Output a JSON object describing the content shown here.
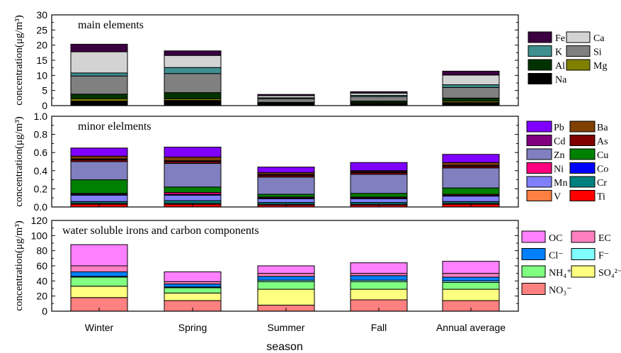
{
  "chart_data": [
    {
      "type": "bar",
      "stacked": true,
      "title": "main elements",
      "ylabel": "concentration(μg/m³)",
      "ylim": [
        0,
        30
      ],
      "yticks": [
        0,
        5,
        10,
        15,
        20,
        25,
        30
      ],
      "categories": [
        "Winter",
        "Spring",
        "Summer",
        "Fall",
        "Annual average"
      ],
      "series": [
        {
          "name": "Na",
          "color": "#000000",
          "values": [
            1.5,
            1.7,
            0.6,
            0.7,
            1.0
          ]
        },
        {
          "name": "Mg",
          "color": "#808000",
          "values": [
            0.8,
            0.6,
            0.2,
            0.3,
            0.5
          ]
        },
        {
          "name": "Al",
          "color": "#003300",
          "values": [
            1.5,
            2.0,
            0.3,
            0.5,
            1.0
          ]
        },
        {
          "name": "Si",
          "color": "#808080",
          "values": [
            6.0,
            6.3,
            1.2,
            1.5,
            3.5
          ]
        },
        {
          "name": "K",
          "color": "#3f8f8f",
          "values": [
            1.0,
            2.0,
            0.3,
            0.4,
            0.9
          ]
        },
        {
          "name": "Ca",
          "color": "#d3d3d3",
          "values": [
            7.0,
            4.0,
            0.7,
            0.7,
            3.2
          ]
        },
        {
          "name": "Fe",
          "color": "#3a0040",
          "values": [
            2.5,
            1.5,
            0.4,
            0.5,
            1.3
          ]
        }
      ],
      "legend_order": [
        "Fe",
        "Ca",
        "K",
        "Si",
        "Al",
        "Mg",
        "Na"
      ]
    },
    {
      "type": "bar",
      "stacked": true,
      "title": "minor elelments",
      "ylabel": "concentration(μg/m³)",
      "ylim": [
        0,
        1.0
      ],
      "yticks": [
        0.0,
        0.2,
        0.4,
        0.6,
        0.8,
        1.0
      ],
      "categories": [
        "Winter",
        "Spring",
        "Summer",
        "Fall",
        "Annual average"
      ],
      "series": [
        {
          "name": "Ti",
          "color": "#ff0000",
          "values": [
            0.03,
            0.03,
            0.02,
            0.02,
            0.03
          ]
        },
        {
          "name": "V",
          "color": "#ff8040",
          "values": [
            0.01,
            0.01,
            0.01,
            0.01,
            0.01
          ]
        },
        {
          "name": "Cr",
          "color": "#008080",
          "values": [
            0.02,
            0.03,
            0.02,
            0.02,
            0.02
          ]
        },
        {
          "name": "Mn",
          "color": "#8080ff",
          "values": [
            0.07,
            0.06,
            0.04,
            0.04,
            0.06
          ]
        },
        {
          "name": "Co",
          "color": "#0000ff",
          "values": [
            0.01,
            0.01,
            0.01,
            0.01,
            0.01
          ]
        },
        {
          "name": "Ni",
          "color": "#ff0080",
          "values": [
            0.01,
            0.02,
            0.01,
            0.01,
            0.01
          ]
        },
        {
          "name": "Cu",
          "color": "#008000",
          "values": [
            0.15,
            0.06,
            0.03,
            0.04,
            0.07
          ]
        },
        {
          "name": "Zn",
          "color": "#8080c0",
          "values": [
            0.2,
            0.26,
            0.19,
            0.21,
            0.22
          ]
        },
        {
          "name": "As",
          "color": "#800000",
          "values": [
            0.02,
            0.02,
            0.02,
            0.02,
            0.02
          ]
        },
        {
          "name": "Cd",
          "color": "#800080",
          "values": [
            0.01,
            0.01,
            0.01,
            0.01,
            0.01
          ]
        },
        {
          "name": "Ba",
          "color": "#804000",
          "values": [
            0.03,
            0.04,
            0.02,
            0.01,
            0.03
          ]
        },
        {
          "name": "Pb",
          "color": "#8000ff",
          "values": [
            0.09,
            0.11,
            0.06,
            0.09,
            0.09
          ]
        }
      ],
      "legend_order": [
        "Pb",
        "Ba",
        "Cd",
        "As",
        "Zn",
        "Cu",
        "Ni",
        "Co",
        "Mn",
        "Cr",
        "V",
        "Ti"
      ]
    },
    {
      "type": "bar",
      "stacked": true,
      "title": "water soluble irons and carbon components",
      "ylabel": "concentration(μg/m³)",
      "ylim": [
        0,
        120
      ],
      "yticks": [
        0,
        20,
        40,
        60,
        80,
        100,
        120
      ],
      "categories": [
        "Winter",
        "Spring",
        "Summer",
        "Fall",
        "Annual average"
      ],
      "xlabel": "season",
      "series": [
        {
          "name": "NO₃⁻",
          "color": "#ff8080",
          "values": [
            18,
            14,
            8,
            15,
            14
          ]
        },
        {
          "name": "SO₄²⁻",
          "color": "#ffff80",
          "values": [
            15,
            10,
            21,
            14,
            15
          ]
        },
        {
          "name": "NH₄⁺",
          "color": "#80ff80",
          "values": [
            12,
            7,
            10,
            10,
            9
          ]
        },
        {
          "name": "F⁻",
          "color": "#80ffff",
          "values": [
            1,
            1,
            2,
            2,
            2
          ]
        },
        {
          "name": "Cl⁻",
          "color": "#0080ff",
          "values": [
            6,
            4,
            5,
            6,
            5
          ]
        },
        {
          "name": "EC",
          "color": "#ff80c0",
          "values": [
            8,
            3,
            4,
            3,
            5
          ]
        },
        {
          "name": "OC",
          "color": "#ff80ff",
          "values": [
            28,
            13,
            10,
            14,
            16
          ]
        }
      ],
      "legend_order": [
        "OC",
        "EC",
        "Cl⁻",
        "F⁻",
        "NH₄⁺",
        "SO₄²⁻",
        "NO₃⁻"
      ]
    }
  ]
}
